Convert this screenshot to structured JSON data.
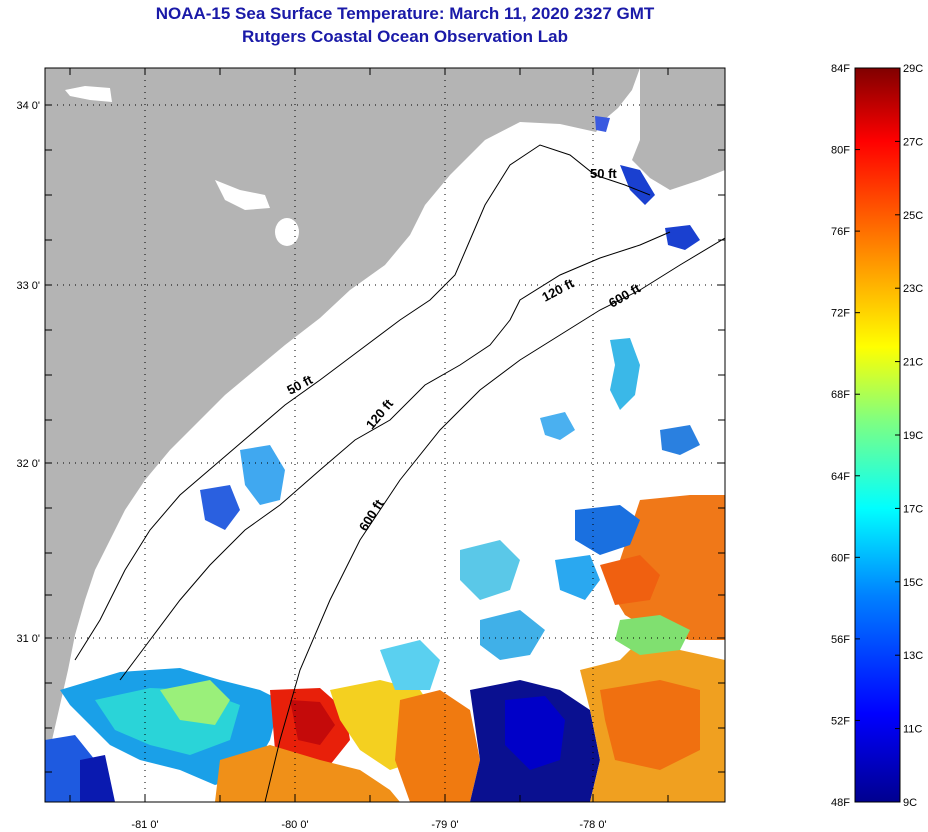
{
  "header": {
    "title": "NOAA-15 Sea Surface Temperature:  March 11, 2020 2327 GMT",
    "subtitle": "Rutgers Coastal Ocean Observation Lab"
  },
  "map": {
    "lat_labels": [
      "34 0'",
      "33 0'",
      "32 0'",
      "31 0'"
    ],
    "lon_labels": [
      "-81 0'",
      "-80 0'",
      "-79 0'",
      "-78 0'"
    ],
    "contours": [
      "50 ft",
      "50 ft",
      "120 ft",
      "120 ft",
      "600 ft",
      "600 ft"
    ],
    "colors": {
      "land": "#b4b4b4",
      "ocean_nodata": "#ffffff",
      "frame": "#000000"
    }
  },
  "colorbar": {
    "fahrenheit": [
      "84F",
      "80F",
      "76F",
      "72F",
      "68F",
      "64F",
      "60F",
      "56F",
      "52F",
      "48F"
    ],
    "celsius": [
      "29C",
      "27C",
      "25C",
      "23C",
      "21C",
      "19C",
      "17C",
      "15C",
      "13C",
      "11C",
      "9C"
    ],
    "gradient": [
      "#00008f",
      "#0000ff",
      "#0080ff",
      "#00ffff",
      "#80ff80",
      "#ffff00",
      "#ff8000",
      "#ff0000",
      "#800000"
    ]
  }
}
